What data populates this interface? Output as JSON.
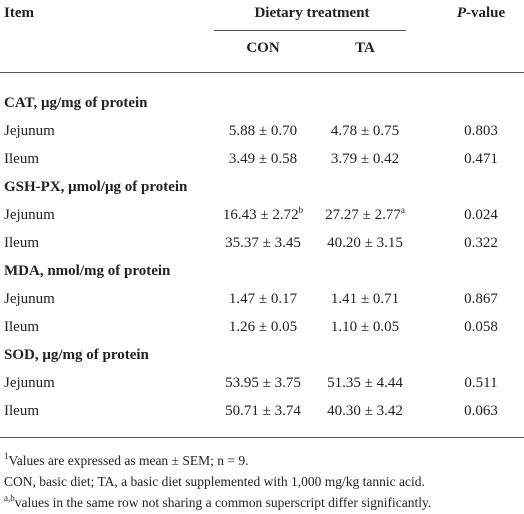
{
  "table": {
    "header": {
      "item": "Item",
      "group": "Dietary treatment",
      "pvalue": {
        "italic": "P",
        "rest": "-value"
      },
      "columns": [
        "CON",
        "TA"
      ]
    },
    "sections": [
      {
        "title": "CAT, μg/mg of protein",
        "rows": [
          [
            "Jejunum",
            "5.88 ± 0.70",
            "4.78 ± 0.75",
            "0.803"
          ],
          [
            "Ileum",
            "3.49 ± 0.58",
            "3.79 ± 0.42",
            "0.471"
          ]
        ]
      },
      {
        "title": "GSH-PX, μmol/μg of protein",
        "rows": [
          [
            "Jejunum",
            {
              "text": "16.43 ± 2.72",
              "sup": "b"
            },
            {
              "text": "27.27 ± 2.77",
              "sup": "a"
            },
            "0.024"
          ],
          [
            "Ileum",
            "35.37 ± 3.45",
            "40.20 ± 3.15",
            "0.322"
          ]
        ]
      },
      {
        "title": "MDA, nmol/mg of protein",
        "rows": [
          [
            "Jejunum",
            "1.47 ± 0.17",
            "1.41 ± 0.71",
            "0.867"
          ],
          [
            "Ileum",
            "1.26 ± 0.05",
            "1.10 ± 0.05",
            "0.058"
          ]
        ]
      },
      {
        "title": "SOD, μg/mg of protein",
        "rows": [
          [
            "Jejunum",
            "53.95 ± 3.75",
            "51.35 ± 4.44",
            "0.511"
          ],
          [
            "Ileum",
            "50.71 ± 3.74",
            "40.30 ± 3.42",
            "0.063"
          ]
        ]
      }
    ]
  },
  "footnotes": [
    {
      "sup": "1",
      "text": "Values are expressed as mean ± SEM; n = 9."
    },
    {
      "text": "CON, basic diet; TA, a basic diet supplemented with 1,000 mg/kg tannic acid."
    },
    {
      "sup": "a,b",
      "text": "values in the same row not sharing a common superscript differ significantly."
    }
  ]
}
